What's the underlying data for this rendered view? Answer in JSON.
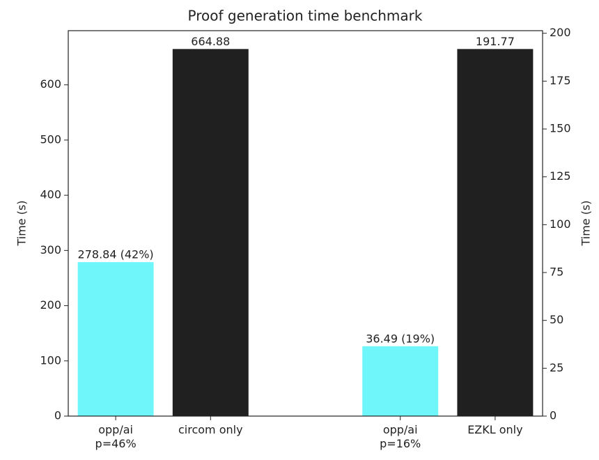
{
  "chart_data": {
    "type": "bar",
    "title": "Proof generation time benchmark",
    "categories": [
      "opp/ai\np=46%",
      "circom only",
      null,
      "opp/ai\np=16%",
      "EZKL only"
    ],
    "bar_colors": [
      "#6ff6fb",
      "#202020",
      null,
      "#6ff6fb",
      "#202020"
    ],
    "series": [
      {
        "axis": "y",
        "values": [
          278.84,
          664.88,
          null,
          null,
          null
        ],
        "value_labels": [
          "278.84 (42%)",
          null,
          null,
          null,
          null
        ]
      },
      {
        "axis": "y2",
        "values": [
          null,
          null,
          null,
          36.49,
          191.77
        ],
        "value_labels": [
          null,
          null,
          null,
          "36.49 (19%)",
          null
        ]
      }
    ],
    "ylabel": "Time (s)",
    "y2label": "Time (s)",
    "ylim": [
      0,
      698.12
    ],
    "yticks": [
      0,
      100,
      200,
      300,
      400,
      500,
      600
    ],
    "y2lim": [
      0,
      201.36
    ],
    "y2ticks": [
      0,
      25,
      50,
      75,
      100,
      125,
      150,
      175,
      200
    ]
  }
}
